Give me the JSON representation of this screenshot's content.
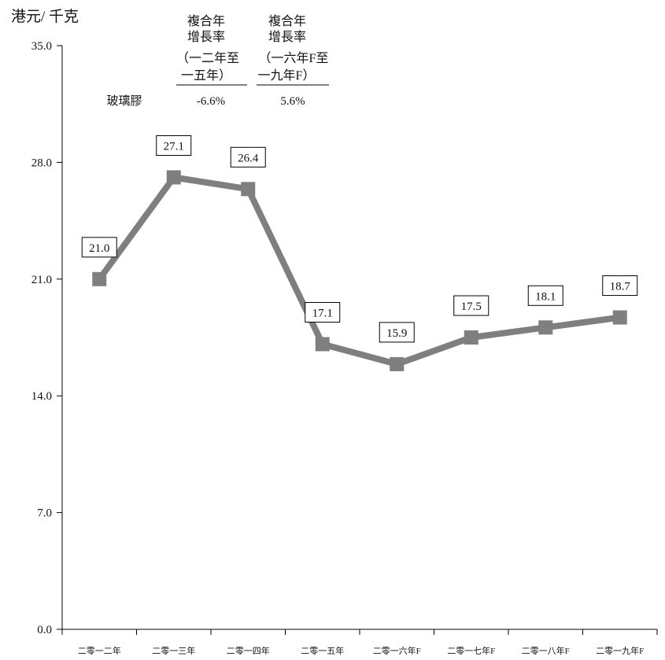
{
  "chart_data": {
    "type": "line",
    "unit_label": "港元/ 千克",
    "categories": [
      "二零一二年",
      "二零一三年",
      "二零一四年",
      "二零一五年",
      "二零一六年F",
      "二零一七年F",
      "二零一八年F",
      "二零一九年F"
    ],
    "series": [
      {
        "values": [
          21.0,
          27.1,
          26.4,
          17.1,
          15.9,
          17.5,
          18.1,
          18.7
        ],
        "color": "#7f7f7f"
      }
    ],
    "data_labels": [
      "21.0",
      "27.1",
      "26.4",
      "17.1",
      "15.9",
      "17.5",
      "18.1",
      "18.7"
    ],
    "ylim": [
      0,
      35
    ],
    "yticks": [
      0,
      7,
      14,
      21,
      28,
      35
    ],
    "ytick_labels": [
      "0.0",
      "7.0",
      "14.0",
      "21.0",
      "28.0",
      "35.0"
    ],
    "grid": false,
    "cagr_table": {
      "col1_header": [
        "複合年",
        "增長率",
        "（一二年至",
        "一五年）"
      ],
      "col2_header": [
        "複合年",
        "增長率",
        "（一六年F至",
        "一九年F）"
      ],
      "row_label": "玻璃膠",
      "col1_value": "-6.6%",
      "col2_value": "5.6%"
    }
  }
}
